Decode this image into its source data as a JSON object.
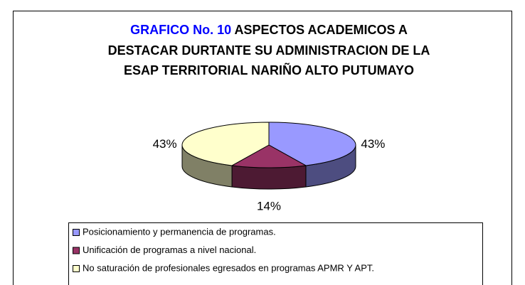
{
  "chart_data": {
    "type": "pie",
    "title_highlight": "GRAFICO No. 10",
    "title_lines": [
      "ASPECTOS ACADEMICOS A",
      "DESTACAR DURTANTE SU ADMINISTRACION DE LA",
      "ESAP TERRITORIAL NARIÑO ALTO PUTUMAYO"
    ],
    "categories": [
      "Posicionamiento y permanencia de programas.",
      "Unificación de programas a nivel nacional.",
      "No saturación de profesionales egresados en  programas APMR Y APT."
    ],
    "values": [
      43,
      14,
      43
    ],
    "value_labels": [
      "43%",
      "14%",
      "43%"
    ],
    "colors": [
      "#9999ff",
      "#993366",
      "#ffffcc"
    ],
    "legend": "bottom"
  }
}
